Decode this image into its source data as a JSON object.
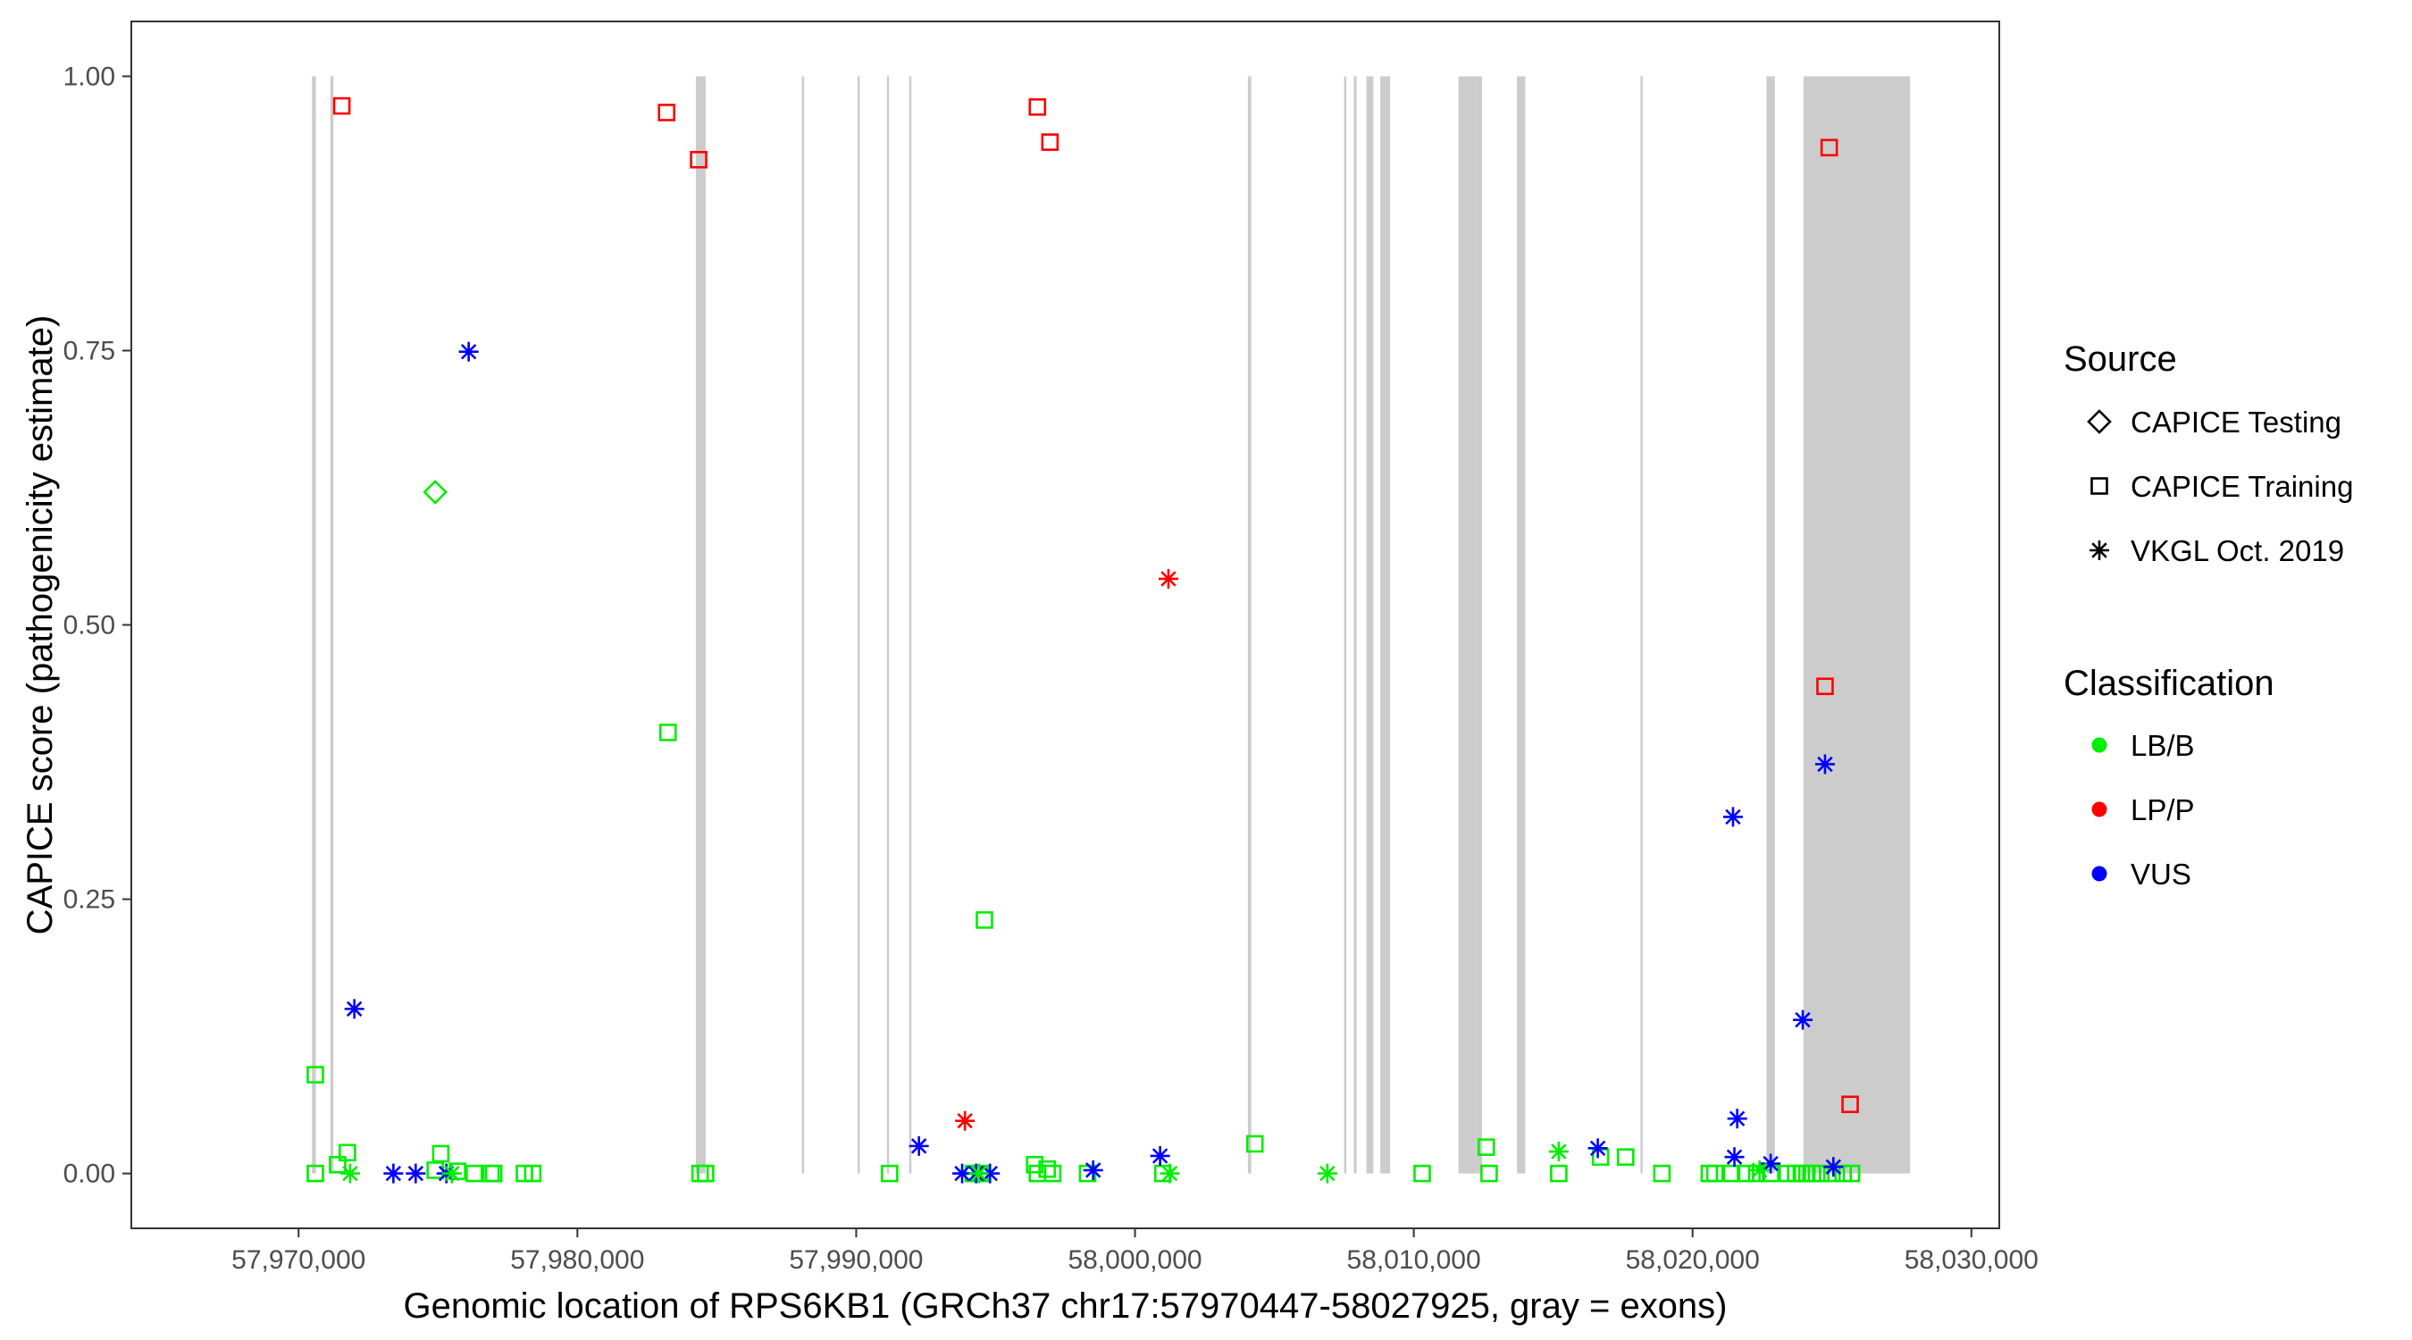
{
  "chart_data": {
    "type": "scatter",
    "title": "",
    "xlabel": "Genomic location of RPS6KB1 (GRCh37 chr17:57970447-58027925, gray = exons)",
    "ylabel": "CAPICE score (pathogenicity estimate)",
    "xlim": [
      57964000,
      58031000
    ],
    "ylim": [
      -0.05,
      1.05
    ],
    "x_ticks": [
      57970000,
      57980000,
      57990000,
      58000000,
      58010000,
      58020000,
      58030000
    ],
    "x_tick_labels": [
      "57,970,000",
      "57,980,000",
      "57,990,000",
      "58,000,000",
      "58,010,000",
      "58,020,000",
      "58,030,000"
    ],
    "y_ticks": [
      0,
      0.25,
      0.5,
      0.75,
      1
    ],
    "y_tick_labels": [
      "0.00",
      "0.25",
      "0.50",
      "0.75",
      "1.00"
    ],
    "grid": false,
    "exon_color": "#cccccc",
    "exons": [
      [
        57970480,
        57970620
      ],
      [
        57971140,
        57971250
      ],
      [
        57984250,
        57984600
      ],
      [
        57988050,
        57988100
      ],
      [
        57990050,
        57990110
      ],
      [
        57991100,
        57991160
      ],
      [
        57991900,
        57991980
      ],
      [
        58004050,
        58004170
      ],
      [
        58007500,
        58007550
      ],
      [
        58007850,
        58007950
      ],
      [
        58008300,
        58008550
      ],
      [
        58008800,
        58009150
      ],
      [
        58011600,
        58012200
      ],
      [
        58012200,
        58012450
      ],
      [
        58013700,
        58014000
      ],
      [
        58018130,
        58018200
      ],
      [
        58022650,
        58022950
      ],
      [
        58023980,
        58027800
      ]
    ],
    "legend": {
      "placement": "right",
      "source_title": "Source",
      "source_items": [
        {
          "label": "CAPICE Testing",
          "shape": "diamond"
        },
        {
          "label": "CAPICE Training",
          "shape": "square"
        },
        {
          "label": "VKGL Oct. 2019",
          "shape": "asterisk"
        }
      ],
      "class_title": "Classification",
      "class_items": [
        {
          "label": "LB/B",
          "color": "#00ee00"
        },
        {
          "label": "LP/P",
          "color": "#ff0000"
        },
        {
          "label": "VUS",
          "color": "#0000ff"
        }
      ]
    },
    "series": [
      {
        "source": "CAPICE Training",
        "classification": "LP/P",
        "points": [
          [
            57971550,
            0.973
          ],
          [
            57983200,
            0.967
          ],
          [
            57984350,
            0.924
          ],
          [
            57996500,
            0.972
          ],
          [
            57996950,
            0.94
          ],
          [
            58024900,
            0.935
          ],
          [
            58024750,
            0.444
          ],
          [
            58025650,
            0.063
          ]
        ]
      },
      {
        "source": "CAPICE Training",
        "classification": "LB/B",
        "points": [
          [
            57983250,
            0.402
          ],
          [
            57994600,
            0.231
          ],
          [
            57970600,
            0.09
          ],
          [
            57971750,
            0.019
          ],
          [
            57971400,
            0.008
          ],
          [
            57975100,
            0.018
          ],
          [
            57974900,
            0.003
          ],
          [
            57975700,
            0.002
          ],
          [
            57976300,
            0.0
          ],
          [
            57976900,
            0.0
          ],
          [
            57977000,
            0.0
          ],
          [
            57978100,
            0.0
          ],
          [
            57978400,
            0.0
          ],
          [
            57970600,
            0.0
          ],
          [
            57984400,
            0.0
          ],
          [
            57984600,
            0.0
          ],
          [
            57991200,
            0.0
          ],
          [
            57994200,
            0.0
          ],
          [
            57994450,
            0.0
          ],
          [
            57996400,
            0.008
          ],
          [
            57996500,
            0.0
          ],
          [
            57996850,
            0.004
          ],
          [
            57997050,
            0.0
          ],
          [
            57998300,
            0.0
          ],
          [
            58001000,
            0.0
          ],
          [
            58004300,
            0.027
          ],
          [
            58010300,
            0.0
          ],
          [
            58012600,
            0.024
          ],
          [
            58012700,
            0.0
          ],
          [
            58015200,
            0.0
          ],
          [
            58016700,
            0.015
          ],
          [
            58017600,
            0.015
          ],
          [
            58018900,
            0.0
          ],
          [
            58020600,
            0.0
          ],
          [
            58020800,
            0.0
          ],
          [
            58021400,
            0.0
          ],
          [
            58021900,
            0.0
          ],
          [
            58022300,
            0.0
          ],
          [
            58022800,
            0.0
          ],
          [
            58023400,
            0.0
          ],
          [
            58023700,
            0.0
          ],
          [
            58023900,
            0.0
          ],
          [
            58024100,
            0.0
          ],
          [
            58024300,
            0.0
          ],
          [
            58024600,
            0.0
          ],
          [
            58025000,
            0.0
          ],
          [
            58025400,
            0.0
          ],
          [
            58025700,
            0.0
          ]
        ]
      },
      {
        "source": "CAPICE Testing",
        "classification": "LB/B",
        "points": [
          [
            57974900,
            0.621
          ]
        ]
      },
      {
        "source": "VKGL Oct. 2019",
        "classification": "VUS",
        "points": [
          [
            57976100,
            0.749
          ],
          [
            57972000,
            0.15
          ],
          [
            57992250,
            0.025
          ],
          [
            57993800,
            0.0
          ],
          [
            57994300,
            0.0
          ],
          [
            57994800,
            0.0
          ],
          [
            57998500,
            0.003
          ],
          [
            58000900,
            0.016
          ],
          [
            57973400,
            0.0
          ],
          [
            57974200,
            0.0
          ],
          [
            57975300,
            0.0
          ],
          [
            58016600,
            0.023
          ],
          [
            58021450,
            0.325
          ],
          [
            58021600,
            0.05
          ],
          [
            58021500,
            0.015
          ],
          [
            58022800,
            0.009
          ],
          [
            58023950,
            0.14
          ],
          [
            58024750,
            0.373
          ],
          [
            58025050,
            0.006
          ]
        ]
      },
      {
        "source": "VKGL Oct. 2019",
        "classification": "LP/P",
        "points": [
          [
            58001200,
            0.542
          ],
          [
            57993900,
            0.048
          ]
        ]
      },
      {
        "source": "VKGL Oct. 2019",
        "classification": "LB/B",
        "points": [
          [
            57971850,
            0.0
          ],
          [
            57975500,
            0.0
          ],
          [
            57994400,
            0.0
          ],
          [
            58001250,
            0.0
          ],
          [
            58006900,
            0.0
          ],
          [
            58015200,
            0.02
          ],
          [
            58022400,
            0.003
          ]
        ]
      }
    ]
  }
}
